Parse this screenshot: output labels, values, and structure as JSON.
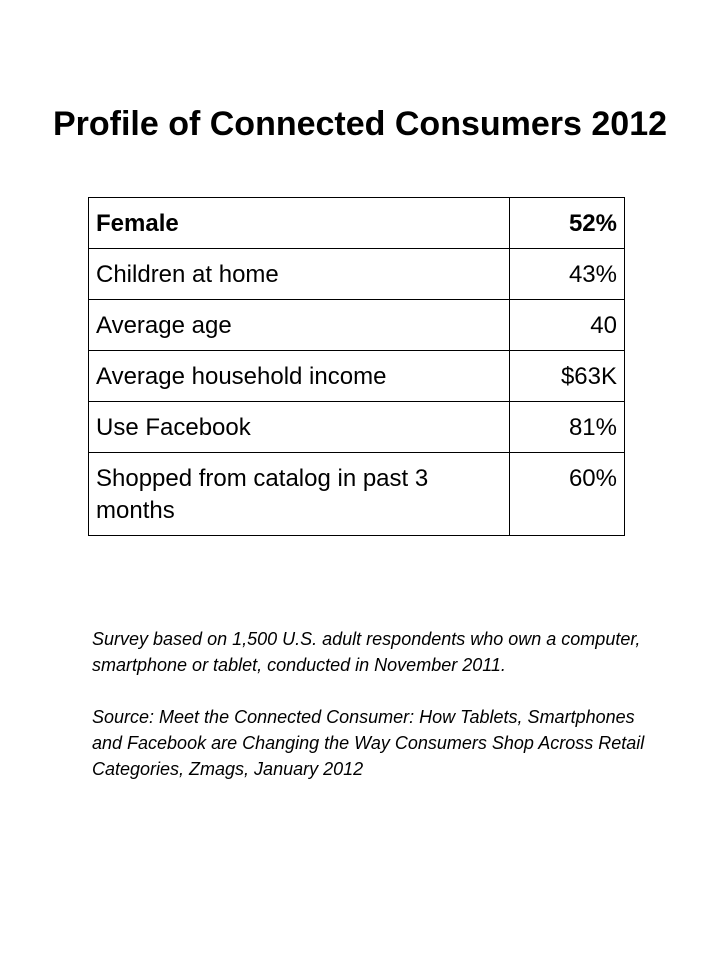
{
  "title": "Profile of Connected Consumers 2012",
  "table": {
    "rows": [
      [
        "Female",
        "52%"
      ],
      [
        "Children at home",
        "43%"
      ],
      [
        "Average age",
        "40"
      ],
      [
        "Average household income",
        "$63K"
      ],
      [
        "Use Facebook",
        "81%"
      ],
      [
        "Shopped from catalog in past 3 months",
        "60%"
      ]
    ]
  },
  "notes": [
    "Survey based on 1,500 U.S. adult respondents who own a computer, smartphone or tablet, conducted in November 2011.",
    "Source: Meet the Connected Consumer: How Tablets, Smartphones and Facebook are Changing the Way Consumers Shop Across Retail Categories, Zmags, January 2012"
  ]
}
